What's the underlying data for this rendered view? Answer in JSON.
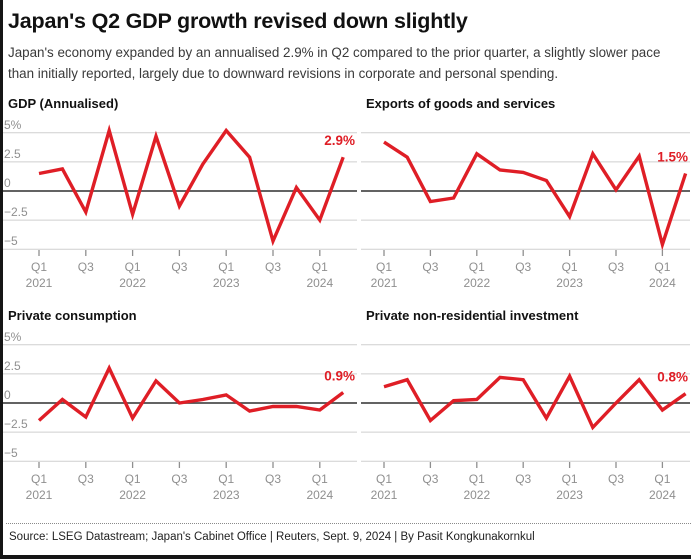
{
  "header": {
    "title": "Japan's Q2 GDP growth revised down slightly",
    "subtitle": "Japan's economy expanded by an annualised 2.9% in Q2 compared to the prior quarter, a slightly slower pace than initially reported, largely due to downward revisions in corporate and personal spending."
  },
  "footer": {
    "source": "Source: LSEG Datastream; Japan's Cabinet Office | Reuters, Sept. 9, 2024 | By Pasit Kongkunakornkul"
  },
  "colors": {
    "accent_red": "#df1e26",
    "gridline": "#cfcfcf",
    "zero_line": "#4d4d4d",
    "axis_label_gray": "#8f8f8f",
    "tick_gray": "#8f8f8f",
    "text_black": "#111111"
  },
  "chart_data": [
    {
      "type": "line",
      "title": "GDP (Annualised)",
      "end_label": "2.9%",
      "y_axis_visible": true,
      "y_ticks": [
        "5%",
        "2.5",
        "0",
        "−2.5",
        "−5"
      ],
      "ylim": [
        -5,
        5
      ],
      "x_ticks": [
        [
          "Q1",
          "2021"
        ],
        [
          "Q3",
          ""
        ],
        [
          "Q1",
          "2022"
        ],
        [
          "Q3",
          ""
        ],
        [
          "Q1",
          "2023"
        ],
        [
          "Q3",
          ""
        ],
        [
          "Q1",
          "2024"
        ]
      ],
      "categories": [
        "Q1 2021",
        "Q2 2021",
        "Q3 2021",
        "Q4 2021",
        "Q1 2022",
        "Q2 2022",
        "Q3 2022",
        "Q4 2022",
        "Q1 2023",
        "Q2 2023",
        "Q3 2023",
        "Q4 2023",
        "Q1 2024",
        "Q2 2024"
      ],
      "values": [
        1.5,
        1.9,
        -1.8,
        5.2,
        -2.0,
        4.7,
        -1.3,
        2.3,
        5.2,
        2.9,
        -4.3,
        0.3,
        -2.5,
        2.9
      ]
    },
    {
      "type": "line",
      "title": "Exports of goods and services",
      "end_label": "1.5%",
      "y_axis_visible": false,
      "y_ticks": [
        "5%",
        "2.5",
        "0",
        "−2.5",
        "−5"
      ],
      "ylim": [
        -5,
        5
      ],
      "x_ticks": [
        [
          "Q1",
          "2021"
        ],
        [
          "Q3",
          ""
        ],
        [
          "Q1",
          "2022"
        ],
        [
          "Q3",
          ""
        ],
        [
          "Q1",
          "2023"
        ],
        [
          "Q3",
          ""
        ],
        [
          "Q1",
          "2024"
        ]
      ],
      "categories": [
        "Q1 2021",
        "Q2 2021",
        "Q3 2021",
        "Q4 2021",
        "Q1 2022",
        "Q2 2022",
        "Q3 2022",
        "Q4 2022",
        "Q1 2023",
        "Q2 2023",
        "Q3 2023",
        "Q4 2023",
        "Q1 2024",
        "Q2 2024"
      ],
      "values": [
        4.2,
        2.9,
        -0.9,
        -0.6,
        3.2,
        1.8,
        1.6,
        0.9,
        -2.2,
        3.2,
        0.1,
        3.0,
        -4.6,
        1.5
      ]
    },
    {
      "type": "line",
      "title": "Private consumption",
      "end_label": "0.9%",
      "y_axis_visible": true,
      "y_ticks": [
        "5%",
        "2.5",
        "0",
        "−2.5",
        "−5"
      ],
      "ylim": [
        -5,
        5
      ],
      "x_ticks": [
        [
          "Q1",
          "2021"
        ],
        [
          "Q3",
          ""
        ],
        [
          "Q1",
          "2022"
        ],
        [
          "Q3",
          ""
        ],
        [
          "Q1",
          "2023"
        ],
        [
          "Q3",
          ""
        ],
        [
          "Q1",
          "2024"
        ]
      ],
      "categories": [
        "Q1 2021",
        "Q2 2021",
        "Q3 2021",
        "Q4 2021",
        "Q1 2022",
        "Q2 2022",
        "Q3 2022",
        "Q4 2022",
        "Q1 2023",
        "Q2 2023",
        "Q3 2023",
        "Q4 2023",
        "Q1 2024",
        "Q2 2024"
      ],
      "values": [
        -1.5,
        0.3,
        -1.2,
        3.0,
        -1.3,
        1.9,
        0.0,
        0.3,
        0.7,
        -0.7,
        -0.3,
        -0.3,
        -0.6,
        0.9
      ]
    },
    {
      "type": "line",
      "title": "Private non-residential investment",
      "end_label": "0.8%",
      "y_axis_visible": false,
      "y_ticks": [
        "5%",
        "2.5",
        "0",
        "−2.5",
        "−5"
      ],
      "ylim": [
        -5,
        5
      ],
      "x_ticks": [
        [
          "Q1",
          "2021"
        ],
        [
          "Q3",
          ""
        ],
        [
          "Q1",
          "2022"
        ],
        [
          "Q3",
          ""
        ],
        [
          "Q1",
          "2023"
        ],
        [
          "Q3",
          ""
        ],
        [
          "Q1",
          "2024"
        ]
      ],
      "categories": [
        "Q1 2021",
        "Q2 2021",
        "Q3 2021",
        "Q4 2021",
        "Q1 2022",
        "Q2 2022",
        "Q3 2022",
        "Q4 2022",
        "Q1 2023",
        "Q2 2023",
        "Q3 2023",
        "Q4 2023",
        "Q1 2024",
        "Q2 2024"
      ],
      "values": [
        1.4,
        2.0,
        -1.5,
        0.2,
        0.3,
        2.2,
        2.0,
        -1.3,
        2.3,
        -2.1,
        0.0,
        2.0,
        -0.6,
        0.8
      ]
    }
  ]
}
